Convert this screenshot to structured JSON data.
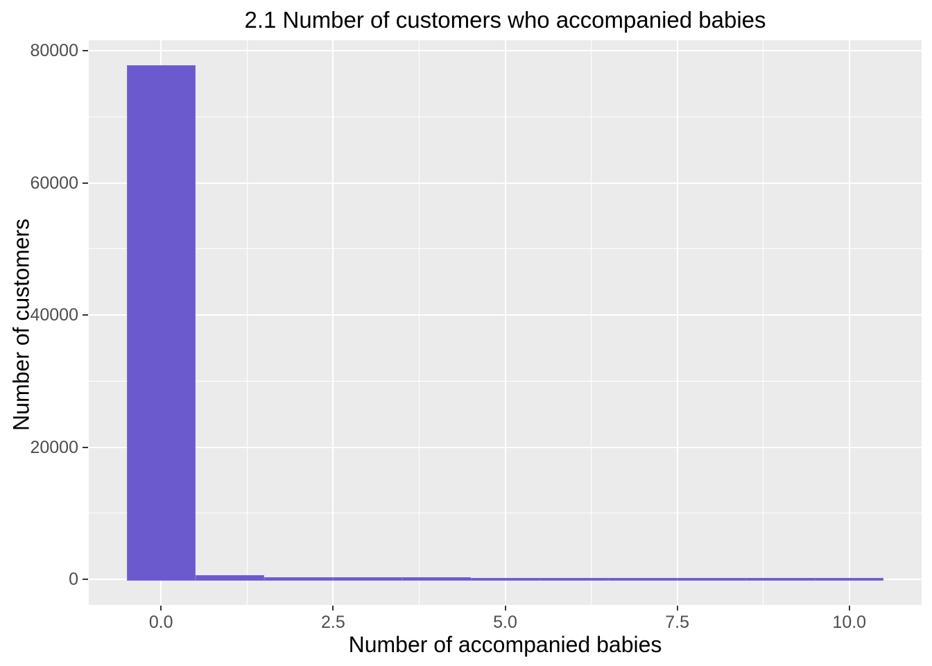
{
  "chart_data": {
    "type": "bar",
    "subtype": "histogram",
    "title": "2.1 Number of customers who accompanied babies",
    "xlabel": "Number of accompanied babies",
    "ylabel": "Number of customers",
    "categories": [
      0,
      1,
      2,
      3,
      4,
      5,
      6,
      7,
      8,
      9,
      10
    ],
    "values": [
      77600,
      500,
      160,
      120,
      110,
      100,
      100,
      100,
      100,
      100,
      100
    ],
    "bar_width": 1,
    "xlim": [
      -1.05,
      11.05
    ],
    "ylim": [
      -3880,
      81580
    ],
    "x_ticks": [
      {
        "value": 0,
        "label": "0.0"
      },
      {
        "value": 2.5,
        "label": "2.5"
      },
      {
        "value": 5,
        "label": "5.0"
      },
      {
        "value": 7.5,
        "label": "7.5"
      },
      {
        "value": 10,
        "label": "10.0"
      }
    ],
    "y_ticks": [
      {
        "value": 0,
        "label": "0"
      },
      {
        "value": 20000,
        "label": "20000"
      },
      {
        "value": 40000,
        "label": "40000"
      },
      {
        "value": 60000,
        "label": "60000"
      },
      {
        "value": 80000,
        "label": "80000"
      }
    ],
    "x_minor_gridlines": [
      1.25,
      3.75,
      6.25,
      8.75
    ],
    "y_minor_gridlines": [
      10000,
      30000,
      50000,
      70000
    ],
    "grid": true,
    "legend_position": "none",
    "colors": {
      "bar_fill": "#6A5ACD",
      "bar_stroke": "#7D6CE0",
      "panel_background": "#EBEBEB",
      "gridline": "#FFFFFF",
      "tick_label_text": "#4D4D4D",
      "tick_mark": "#333333",
      "title_text": "#000000",
      "axis_title_text": "#000000",
      "figure_background": "#FFFFFF"
    }
  }
}
